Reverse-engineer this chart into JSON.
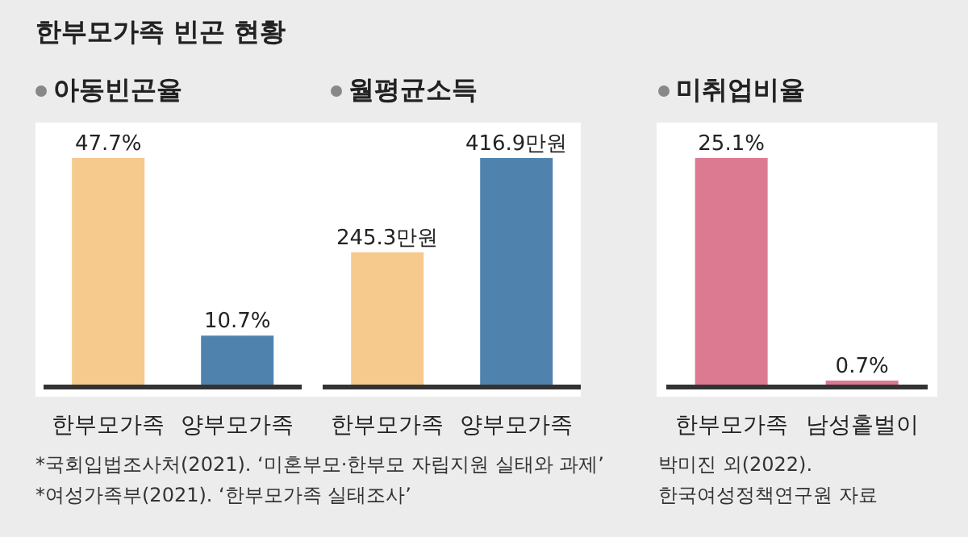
{
  "chart_data": [
    {
      "type": "bar",
      "title": "한부모가족 빈곤 현황",
      "subtitle": "아동빈곤율",
      "categories": [
        "한부모가족",
        "양부모가족"
      ],
      "values": [
        47.7,
        10.7
      ],
      "colors": [
        "#f6c98d",
        "#4f83ad"
      ],
      "value_labels": [
        "47.7%",
        "10.7%"
      ],
      "annotations": [
        "*국회입법조사처(2021).  ‘미혼부모·한부모 자립지원 실태와 과제’",
        "*여성가족부(2021).  ‘한부모가족 실태조사’"
      ]
    },
    {
      "type": "bar",
      "subtitle": "월평균소득",
      "categories": [
        "한부모가족",
        "양부모가족"
      ],
      "values": [
        245.3,
        416.9
      ],
      "colors": [
        "#f6c98d",
        "#4f83ad"
      ],
      "value_labels": [
        "245.3만원",
        "416.9만원"
      ]
    },
    {
      "type": "bar",
      "subtitle": "미취업비율",
      "categories": [
        "한부모가족",
        "남성홑벌이"
      ],
      "values": [
        25.1,
        0.7
      ],
      "colors": [
        "#dc7a92",
        "#dc7a92"
      ],
      "value_labels": [
        "25.1%",
        "0.7%"
      ],
      "annotations": [
        "박미진 외(2022).",
        "한국여성정책연구원 자료"
      ]
    }
  ]
}
